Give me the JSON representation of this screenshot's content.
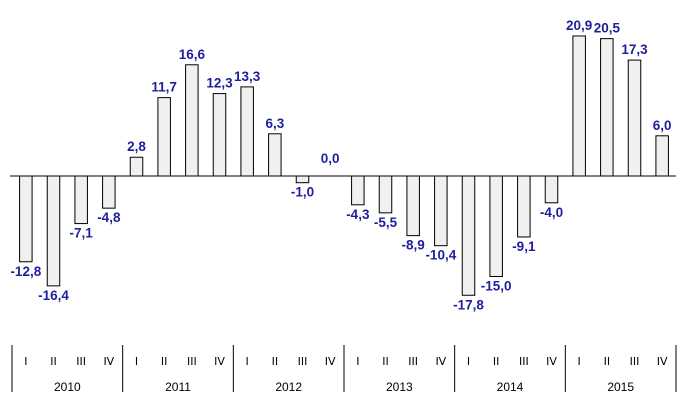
{
  "chart_data": {
    "type": "bar",
    "title": "",
    "xlabel": "",
    "ylabel": "",
    "quarters": [
      "I",
      "II",
      "III",
      "IV"
    ],
    "years": [
      "2010",
      "2011",
      "2012",
      "2013",
      "2014",
      "2015"
    ],
    "categories": [
      "2010 I",
      "2010 II",
      "2010 III",
      "2010 IV",
      "2011 I",
      "2011 II",
      "2011 III",
      "2011 IV",
      "2012 I",
      "2012 II",
      "2012 III",
      "2012 IV",
      "2013 I",
      "2013 II",
      "2013 III",
      "2013 IV",
      "2014 I",
      "2014 II",
      "2014 III",
      "2014 IV",
      "2015 I",
      "2015 II",
      "2015 III",
      "2015 IV"
    ],
    "values": [
      -12.8,
      -16.4,
      -7.1,
      -4.8,
      2.8,
      11.7,
      16.6,
      12.3,
      13.3,
      6.3,
      -1.0,
      0.0,
      -4.3,
      -5.5,
      -8.9,
      -10.4,
      -17.8,
      -15.0,
      -9.1,
      -4.0,
      20.9,
      20.5,
      17.3,
      6.0
    ],
    "value_labels": [
      "-12,8",
      "-16,4",
      "-7,1",
      "-4,8",
      "2,8",
      "11,7",
      "16,6",
      "12,3",
      "13,3",
      "6,3",
      "-1,0",
      "0,0",
      "-4,3",
      "-5,5",
      "-8,9",
      "-10,4",
      "-17,8",
      "-15,0",
      "-9,1",
      "-4,0",
      "20,9",
      "20,5",
      "17,3",
      "6,0"
    ],
    "ylim": [
      -20,
      22
    ],
    "grid": false,
    "colors": {
      "bar_fill": "#f0f0f0",
      "bar_stroke": "#000000",
      "label": "#1f1f9e"
    }
  }
}
